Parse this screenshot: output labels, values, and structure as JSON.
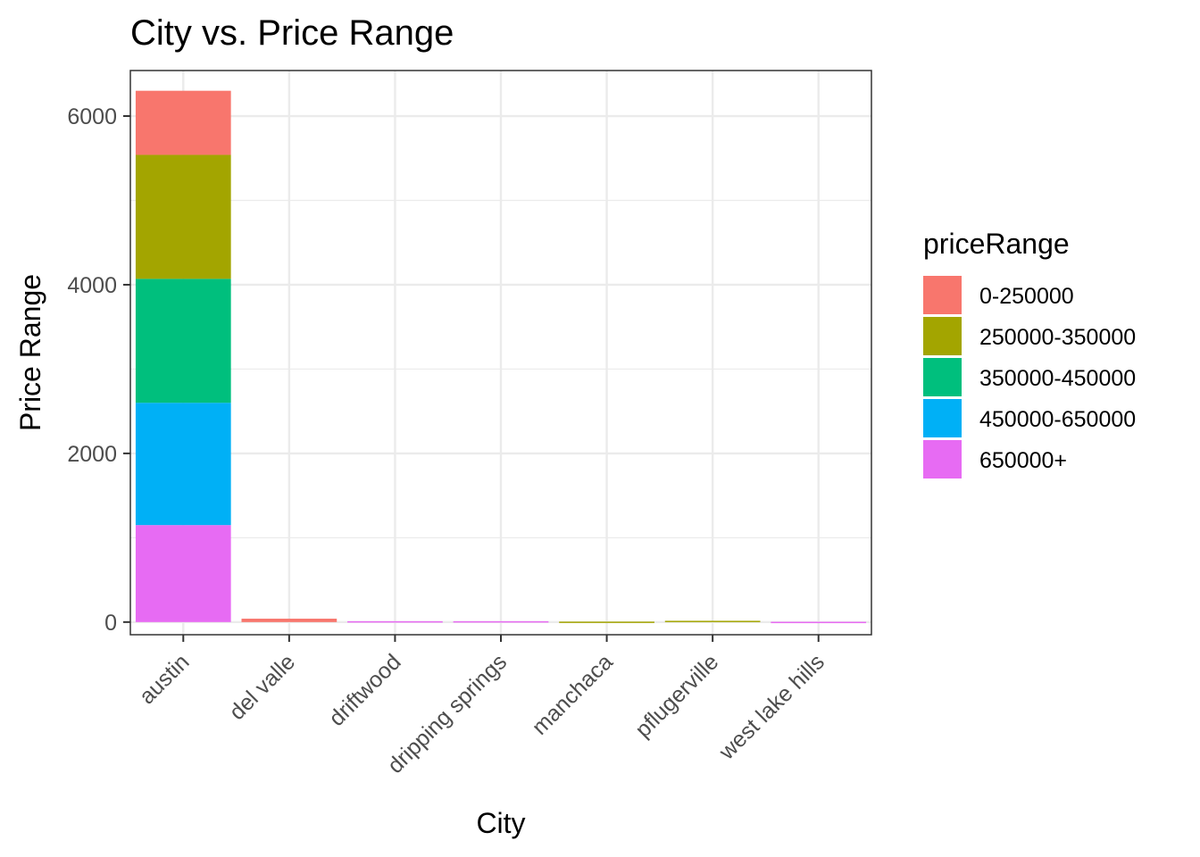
{
  "chart_data": {
    "type": "bar",
    "stacked": true,
    "title": "City vs. Price Range",
    "xlabel": "City",
    "ylabel": "Price Range",
    "ylim": [
      -150,
      6540
    ],
    "yticks": [
      0,
      2000,
      4000,
      6000
    ],
    "ytick_labels": [
      "0",
      "2000",
      "4000",
      "6000"
    ],
    "grid": true,
    "legend": {
      "title": "priceRange",
      "placement": "right"
    },
    "categories": [
      "austin",
      "del valle",
      "driftwood",
      "dripping springs",
      "manchaca",
      "pflugerville",
      "west lake hills"
    ],
    "series": [
      {
        "name": "0-250000",
        "color": "#F8766D",
        "values": [
          760,
          40,
          0,
          0,
          0,
          0,
          0
        ]
      },
      {
        "name": "250000-350000",
        "color": "#A3A500",
        "values": [
          1470,
          0,
          0,
          0,
          5,
          15,
          0
        ]
      },
      {
        "name": "350000-450000",
        "color": "#00BF7D",
        "values": [
          1470,
          0,
          0,
          0,
          0,
          0,
          0
        ]
      },
      {
        "name": "450000-650000",
        "color": "#00B0F6",
        "values": [
          1450,
          0,
          0,
          0,
          0,
          0,
          0
        ]
      },
      {
        "name": "650000+",
        "color": "#E76BF3",
        "values": [
          1150,
          0,
          10,
          10,
          0,
          0,
          3
        ]
      }
    ]
  }
}
